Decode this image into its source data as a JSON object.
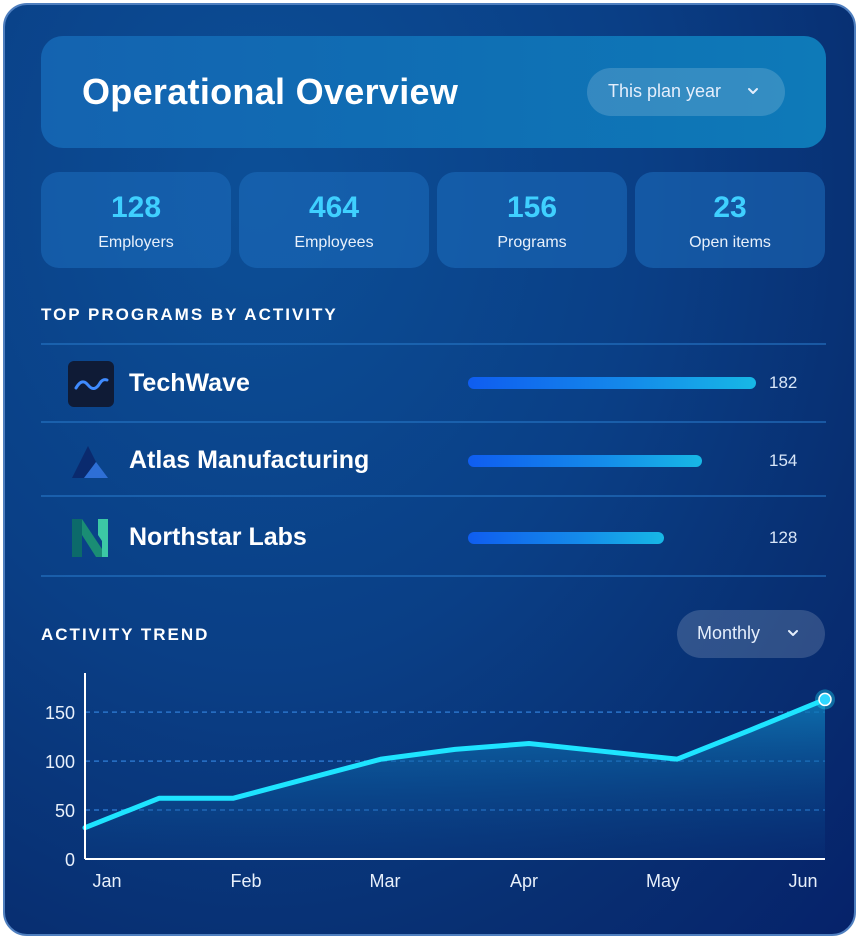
{
  "header": {
    "title": "Operational Overview",
    "period_dropdown": "This plan year"
  },
  "stats": [
    {
      "value": "128",
      "label": "Employers"
    },
    {
      "value": "464",
      "label": "Employees"
    },
    {
      "value": "156",
      "label": "Programs"
    },
    {
      "value": "23",
      "label": "Open items"
    }
  ],
  "programs": {
    "section_title": "TOP PROGRAMS BY ACTIVITY",
    "items": [
      {
        "name": "TechWave",
        "value": "182",
        "logo": "techwave-logo"
      },
      {
        "name": "Atlas Manufacturing",
        "value": "154",
        "logo": "atlas-logo"
      },
      {
        "name": "Northstar Labs",
        "value": "128",
        "logo": "northstar-logo"
      }
    ]
  },
  "trend": {
    "section_title": "ACTIVITY TREND",
    "interval_dropdown": "Monthly"
  },
  "chart_data": {
    "type": "area",
    "categories": [
      "Jan",
      "Feb",
      "Mar",
      "Apr",
      "May",
      "Jun"
    ],
    "x": [
      0,
      0.5,
      1,
      1.5,
      2,
      2.5,
      3,
      3.5,
      4,
      4.5,
      5
    ],
    "values": [
      32,
      62,
      62,
      82,
      102,
      112,
      118,
      110,
      102,
      132,
      163
    ],
    "yticks": [
      0,
      50,
      100,
      150
    ],
    "ylim": [
      0,
      190
    ],
    "grid": true,
    "colors": {
      "line": "#1ee4ff",
      "fill_top": "#0e6fb6",
      "grid": "#2a73c9"
    }
  }
}
